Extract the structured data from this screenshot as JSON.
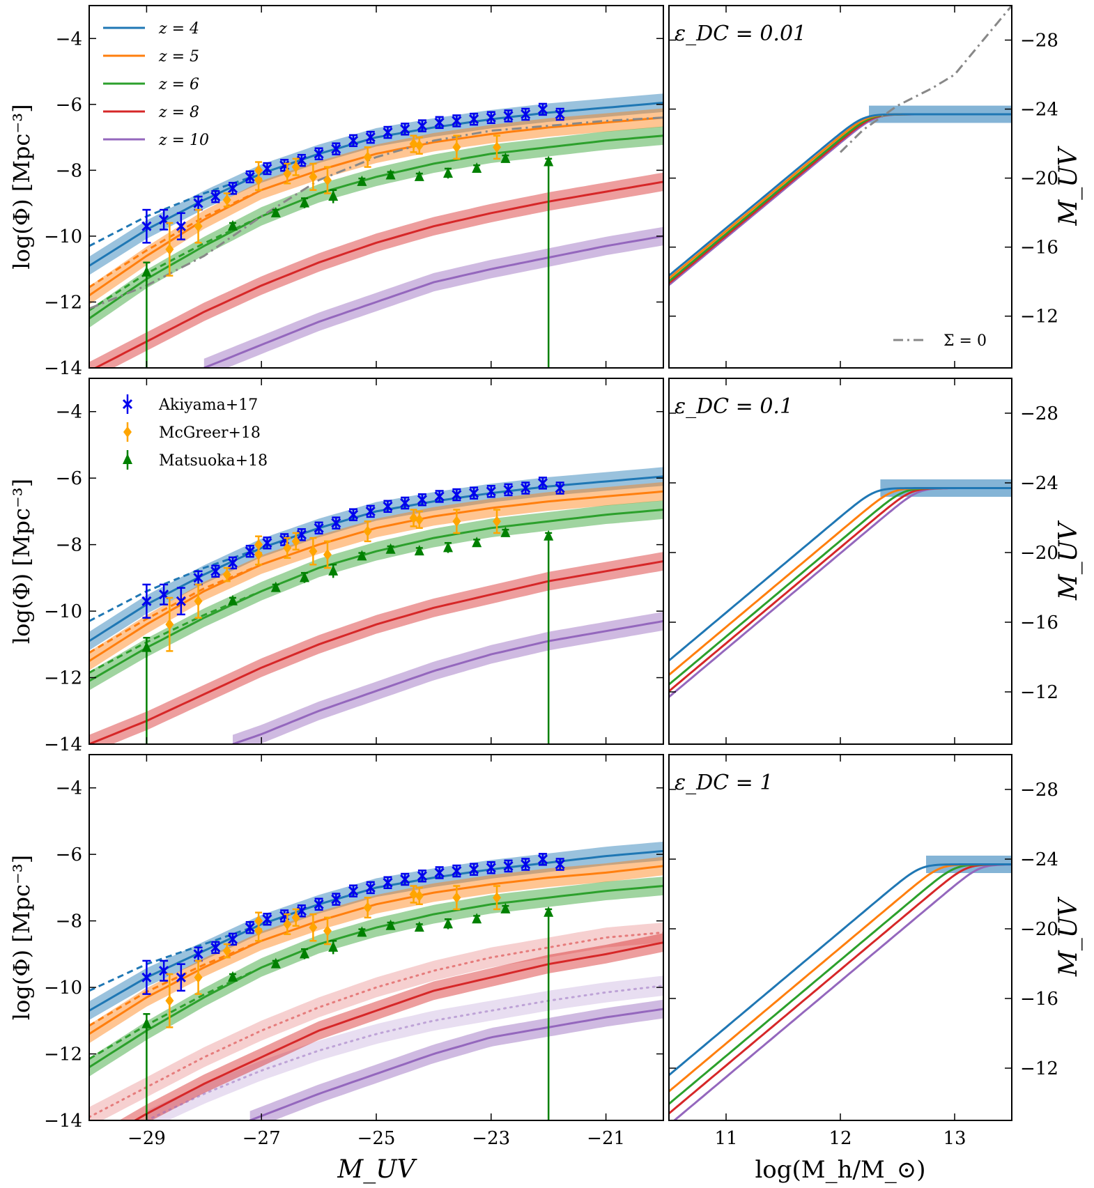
{
  "figure": {
    "left_xlabel": "M_UV",
    "right_xlabel": "log(M_h/M_⊙)",
    "left_ylabel": "log(Φ) [Mpc⁻³]",
    "right_ylabel": "M_UV"
  },
  "colors": {
    "z4": "#1f77b4",
    "z5": "#ff7f0e",
    "z6": "#2ca02c",
    "z8": "#d62728",
    "z10": "#9467bd",
    "akiyama": "#0000ee",
    "mcgreer": "#ffa500",
    "matsuoka": "#008000",
    "sigma0": "#888888"
  },
  "legend_z": [
    {
      "label": "z = 4",
      "color": "#1f77b4"
    },
    {
      "label": "z = 5",
      "color": "#ff7f0e"
    },
    {
      "label": "z = 6",
      "color": "#2ca02c"
    },
    {
      "label": "z = 8",
      "color": "#d62728"
    },
    {
      "label": "z = 10",
      "color": "#9467bd"
    }
  ],
  "legend_data": [
    {
      "label": "Akiyama+17",
      "color": "#0000ee",
      "marker": "x"
    },
    {
      "label": "McGreer+18",
      "color": "#ffa500",
      "marker": "diamond"
    },
    {
      "label": "Matsuoka+18",
      "color": "#008000",
      "marker": "triangle"
    }
  ],
  "annotations": {
    "eps_labels": [
      "ε_DC = 0.01",
      "ε_DC = 0.1",
      "ε_DC = 1"
    ],
    "sigma_label": "Σ = 0"
  },
  "chart_data": [
    {
      "type": "line",
      "panel": "luminosity function",
      "xlabel": "M_UV",
      "ylabel": "log(Φ) [Mpc⁻³]",
      "xlim": [
        -30,
        -20
      ],
      "ylim": [
        -14,
        -3
      ],
      "xticks": [
        -29,
        -27,
        -25,
        -23,
        -21
      ],
      "yticks": [
        -14,
        -12,
        -10,
        -8,
        -6,
        -4
      ],
      "rows": [
        {
          "series": [
            {
              "name": "z = 4",
              "x": [
                -30,
                -29,
                -28,
                -27,
                -26,
                -25,
                -24,
                -23,
                -22,
                -21,
                -20
              ],
              "y": [
                -10.9,
                -9.8,
                -8.9,
                -8.1,
                -7.5,
                -7.0,
                -6.7,
                -6.45,
                -6.25,
                -6.1,
                -5.95
              ]
            },
            {
              "name": "z = 5",
              "x": [
                -30,
                -29,
                -28,
                -27,
                -26,
                -25,
                -24,
                -23,
                -22,
                -21,
                -20
              ],
              "y": [
                -11.8,
                -10.6,
                -9.5,
                -8.6,
                -8.0,
                -7.5,
                -7.15,
                -6.9,
                -6.7,
                -6.55,
                -6.4
              ]
            },
            {
              "name": "z = 6",
              "x": [
                -30,
                -29,
                -28,
                -27,
                -26,
                -25,
                -24,
                -23,
                -22,
                -21,
                -20
              ],
              "y": [
                -12.5,
                -11.3,
                -10.3,
                -9.4,
                -8.7,
                -8.2,
                -7.8,
                -7.5,
                -7.3,
                -7.1,
                -6.95
              ]
            },
            {
              "name": "z = 8",
              "x": [
                -30,
                -29,
                -28,
                -27,
                -26,
                -25,
                -24,
                -23,
                -22,
                -21,
                -20
              ],
              "y": [
                -14.1,
                -13.2,
                -12.3,
                -11.5,
                -10.8,
                -10.2,
                -9.7,
                -9.3,
                -8.95,
                -8.65,
                -8.35
              ]
            },
            {
              "name": "z = 10",
              "x": [
                -28,
                -27,
                -26,
                -25,
                -24,
                -23,
                -22,
                -21,
                -20
              ],
              "y": [
                -14.0,
                -13.3,
                -12.6,
                -12.0,
                -11.4,
                -11.0,
                -10.65,
                -10.3,
                -10.0
              ]
            }
          ],
          "sigma0": {
            "name": "Σ = 0",
            "x": [
              -30,
              -29,
              -28,
              -27,
              -26,
              -25,
              -24,
              -23,
              -22,
              -21,
              -20
            ],
            "y": [
              -12.2,
              -11.5,
              -10.6,
              -9.4,
              -8.3,
              -7.6,
              -7.1,
              -6.8,
              -6.65,
              -6.5,
              -6.4
            ]
          }
        },
        {
          "series": [
            {
              "name": "z = 4",
              "x": [
                -30,
                -29,
                -28,
                -27,
                -26,
                -25,
                -24,
                -23,
                -22,
                -21,
                -20
              ],
              "y": [
                -10.9,
                -9.8,
                -8.9,
                -8.1,
                -7.5,
                -7.0,
                -6.7,
                -6.45,
                -6.25,
                -6.1,
                -5.95
              ]
            },
            {
              "name": "z = 5",
              "x": [
                -30,
                -29,
                -28,
                -27,
                -26,
                -25,
                -24,
                -23,
                -22,
                -21,
                -20
              ],
              "y": [
                -11.5,
                -10.4,
                -9.4,
                -8.6,
                -8.0,
                -7.5,
                -7.15,
                -6.9,
                -6.7,
                -6.55,
                -6.4
              ]
            },
            {
              "name": "z = 6",
              "x": [
                -30,
                -29,
                -28,
                -27,
                -26,
                -25,
                -24,
                -23,
                -22,
                -21,
                -20
              ],
              "y": [
                -12.1,
                -11.1,
                -10.2,
                -9.4,
                -8.7,
                -8.2,
                -7.8,
                -7.5,
                -7.3,
                -7.1,
                -6.95
              ]
            },
            {
              "name": "z = 8",
              "x": [
                -30,
                -29,
                -28,
                -27,
                -26,
                -25,
                -24,
                -23,
                -22,
                -21,
                -20
              ],
              "y": [
                -14.0,
                -13.3,
                -12.5,
                -11.7,
                -11.0,
                -10.4,
                -9.9,
                -9.5,
                -9.1,
                -8.8,
                -8.5
              ]
            },
            {
              "name": "z = 10",
              "x": [
                -27.5,
                -27,
                -26,
                -25,
                -24,
                -23,
                -22,
                -21,
                -20
              ],
              "y": [
                -14.0,
                -13.7,
                -13.0,
                -12.4,
                -11.8,
                -11.3,
                -10.9,
                -10.6,
                -10.3
              ]
            }
          ]
        },
        {
          "series": [
            {
              "name": "z = 4",
              "x": [
                -30,
                -29,
                -28,
                -27,
                -26,
                -25,
                -24,
                -23,
                -22,
                -21,
                -20
              ],
              "y": [
                -10.7,
                -9.7,
                -8.9,
                -8.1,
                -7.5,
                -7.0,
                -6.7,
                -6.45,
                -6.25,
                -6.05,
                -5.9
              ]
            },
            {
              "name": "z = 5",
              "x": [
                -30,
                -29,
                -28,
                -27,
                -26,
                -25,
                -24,
                -23,
                -22,
                -21,
                -20
              ],
              "y": [
                -11.4,
                -10.3,
                -9.4,
                -8.6,
                -8.0,
                -7.5,
                -7.15,
                -6.9,
                -6.7,
                -6.55,
                -6.35
              ]
            },
            {
              "name": "z = 6",
              "x": [
                -30,
                -29,
                -28,
                -27,
                -26,
                -25,
                -24,
                -23,
                -22,
                -21,
                -20
              ],
              "y": [
                -12.4,
                -11.3,
                -10.3,
                -9.4,
                -8.7,
                -8.2,
                -7.8,
                -7.5,
                -7.3,
                -7.1,
                -6.95
              ]
            },
            {
              "name": "z = 8",
              "x": [
                -30,
                -29,
                -28,
                -27,
                -26,
                -25,
                -24,
                -23,
                -22,
                -21,
                -20
              ],
              "y": [
                -14.8,
                -13.8,
                -12.9,
                -12.1,
                -11.3,
                -10.7,
                -10.1,
                -9.7,
                -9.3,
                -9.0,
                -8.65
              ]
            },
            {
              "name": "z = 10",
              "x": [
                -27.2,
                -26,
                -25,
                -24,
                -23,
                -22,
                -21,
                -20
              ],
              "y": [
                -14.0,
                -13.2,
                -12.6,
                -12.0,
                -11.5,
                -11.2,
                -10.9,
                -10.65
              ]
            }
          ],
          "dotted": [
            {
              "name": "z = 8",
              "x": [
                -30,
                -29,
                -28,
                -27,
                -26,
                -25,
                -24,
                -23,
                -22,
                -21,
                -20
              ],
              "y": [
                -13.9,
                -13.0,
                -12.1,
                -11.3,
                -10.6,
                -10.0,
                -9.5,
                -9.1,
                -8.8,
                -8.5,
                -8.35
              ]
            },
            {
              "name": "z = 10",
              "x": [
                -29,
                -28,
                -27,
                -26,
                -25,
                -24,
                -23,
                -22,
                -21,
                -20
              ],
              "y": [
                -14.0,
                -13.2,
                -12.5,
                -11.9,
                -11.4,
                -11.0,
                -10.7,
                -10.4,
                -10.15,
                -9.95
              ]
            }
          ]
        }
      ],
      "data": {
        "akiyama": {
          "x": [
            -29,
            -28.7,
            -28.4,
            -28.1,
            -27.8,
            -27.5,
            -27.2,
            -26.9,
            -26.6,
            -26.3,
            -26.0,
            -25.7,
            -25.4,
            -25.1,
            -24.8,
            -24.5,
            -24.2,
            -23.9,
            -23.6,
            -23.3,
            -23.0,
            -22.7,
            -22.4,
            -22.1,
            -21.8
          ],
          "y": [
            -9.7,
            -9.5,
            -9.7,
            -9.0,
            -8.8,
            -8.55,
            -8.2,
            -7.95,
            -7.85,
            -7.7,
            -7.5,
            -7.35,
            -7.1,
            -7.0,
            -6.85,
            -6.75,
            -6.65,
            -6.55,
            -6.5,
            -6.45,
            -6.4,
            -6.35,
            -6.3,
            -6.15,
            -6.3
          ],
          "err": [
            0.5,
            0.3,
            0.4,
            0.2,
            0.15,
            0.1,
            0.1,
            0.1,
            0.1,
            0.1,
            0.1,
            0.1,
            0.1,
            0.1,
            0.1,
            0.1,
            0.1,
            0.1,
            0.1,
            0.1,
            0.1,
            0.1,
            0.1,
            0.1,
            0.1
          ]
        },
        "mcgreer": {
          "x": [
            -28.6,
            -28.1,
            -27.6,
            -27.05,
            -27.05,
            -26.55,
            -26.4,
            -26.1,
            -25.85,
            -25.15,
            -24.35,
            -24.25,
            -23.6,
            -22.9
          ],
          "y": [
            -10.4,
            -9.7,
            -8.9,
            -8.3,
            -8.0,
            -8.1,
            -7.9,
            -8.2,
            -8.3,
            -7.6,
            -7.2,
            -7.25,
            -7.3,
            -7.3
          ],
          "err": [
            0.8,
            0.5,
            0.2,
            0.3,
            0.25,
            0.3,
            0.25,
            0.4,
            0.4,
            0.3,
            0.25,
            0.25,
            0.35,
            0.35
          ]
        },
        "matsuoka": {
          "x": [
            -29,
            -27.5,
            -26.75,
            -26.25,
            -25.75,
            -25.25,
            -24.75,
            -24.25,
            -23.75,
            -23.25,
            -22.75,
            -22.0
          ],
          "y": [
            -11.1,
            -9.7,
            -9.3,
            -9.0,
            -8.8,
            -8.35,
            -8.15,
            -8.2,
            -8.1,
            -7.95,
            -7.65,
            -7.75
          ],
          "err": [
            0.3,
            0.1,
            0.1,
            0.15,
            0.2,
            0.1,
            0.1,
            0.1,
            0.15,
            0.1,
            0.1,
            0.1
          ],
          "arrow_from": [
            -14,
            -14
          ]
        }
      }
    },
    {
      "type": "line",
      "panel": "M_UV vs halo mass",
      "xlabel": "log(M_h/M_⊙)",
      "ylabel": "M_UV",
      "xlim": [
        10.5,
        13.5
      ],
      "ylim": [
        -9,
        -30
      ],
      "xticks": [
        11,
        12,
        13
      ],
      "yticks": [
        -12,
        -16,
        -20,
        -24,
        -28
      ],
      "plateau": -23.7,
      "band_halfwidth": 0.5,
      "rows": [
        {
          "eps": "ε_DC = 0.01",
          "knee": [
            12.2,
            12.23,
            12.26,
            12.28,
            12.3
          ],
          "sigma0": {
            "x": [
              12.0,
              12.2,
              12.5,
              12.8,
              13.0,
              13.5
            ],
            "y": [
              -21.5,
              -22.8,
              -24.2,
              -25.2,
              -26.0,
              -30.0
            ]
          }
        },
        {
          "eps": "ε_DC = 0.1",
          "knee": [
            12.3,
            12.45,
            12.55,
            12.62,
            12.68
          ]
        },
        {
          "eps": "ε_DC = 1",
          "knee": [
            12.7,
            12.87,
            13.0,
            13.1,
            13.22
          ]
        }
      ]
    }
  ]
}
